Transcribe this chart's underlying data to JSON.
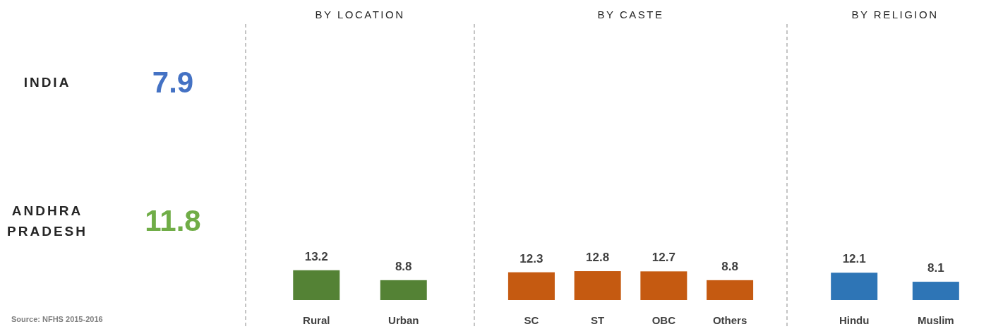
{
  "chart_data": [
    {
      "type": "other",
      "categories": [
        "INDIA",
        "ANDHRA PRADESH"
      ],
      "values": [
        7.9,
        11.8
      ],
      "colors": [
        "#4472c4",
        "#70ad47"
      ],
      "data_labels": true,
      "annotations": [
        "Source: NFHS 2015-2016"
      ]
    },
    {
      "type": "bar",
      "title": "BY LOCATION",
      "categories": [
        "Rural",
        "Urban"
      ],
      "values": [
        13.2,
        8.8
      ],
      "color": "#548235",
      "data_labels": true
    },
    {
      "type": "bar",
      "title": "BY CASTE",
      "categories": [
        "SC",
        "ST",
        "OBC",
        "Others"
      ],
      "values": [
        12.3,
        12.8,
        12.7,
        8.8
      ],
      "color": "#c55a11",
      "data_labels": true
    },
    {
      "type": "bar",
      "title": "BY RELIGION",
      "categories": [
        "Hindu",
        "Muslim"
      ],
      "values": [
        12.1,
        8.1
      ],
      "color": "#2e75b6",
      "data_labels": true
    }
  ]
}
